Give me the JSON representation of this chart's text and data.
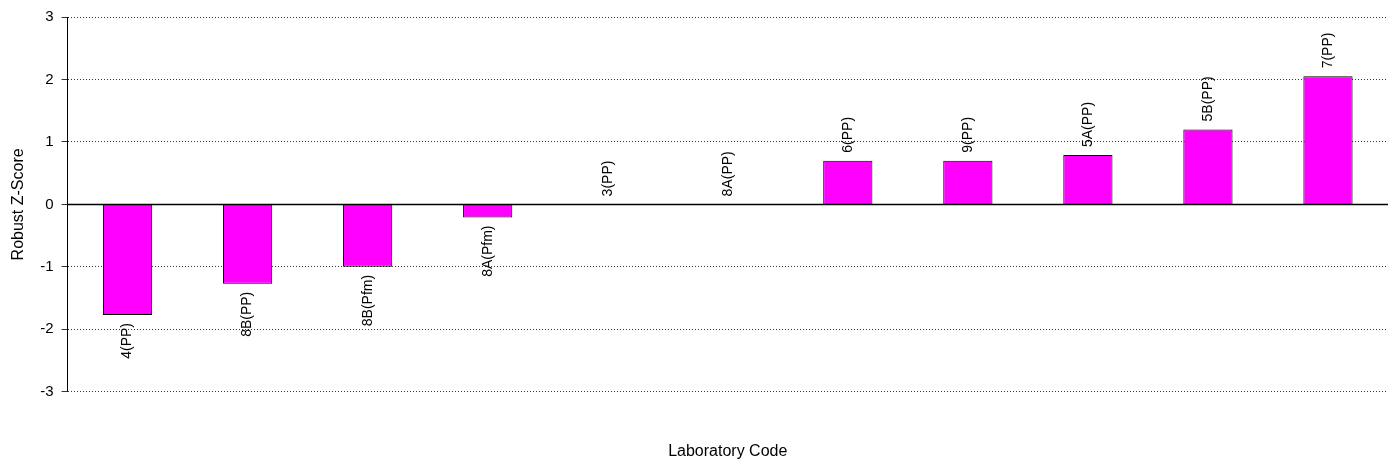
{
  "chart_data": {
    "type": "bar",
    "xlabel": "Laboratory Code",
    "ylabel": "Robust Z-Score",
    "categories": [
      "4(PP)",
      "8B(PP)",
      "8B(Pfm)",
      "8A(Pfm)",
      "3(PP)",
      "8A(PP)",
      "6(PP)",
      "9(PP)",
      "5A(PP)",
      "5B(PP)",
      "7(PP)"
    ],
    "values": [
      -1.77,
      -1.27,
      -1.0,
      -0.21,
      0,
      0,
      0.7,
      0.7,
      0.79,
      1.2,
      2.05
    ],
    "color": "#ff00ff",
    "ylim": [
      -3,
      3
    ],
    "yticks": [
      -3,
      -2,
      -1,
      0,
      1,
      2,
      3
    ],
    "grid": "y",
    "tick_labels": "y"
  }
}
